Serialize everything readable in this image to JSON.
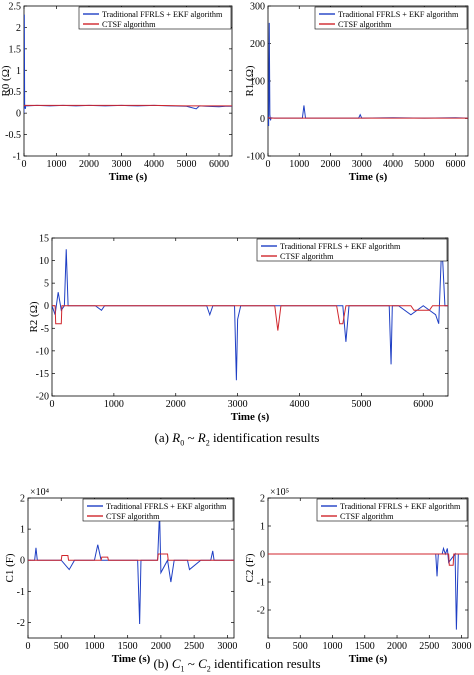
{
  "captions": {
    "a": {
      "label": "(a)",
      "sym1": "R",
      "sub1": "0",
      "sep": "~",
      "sym2": "R",
      "sub2": "2",
      "text": "identification results"
    },
    "b": {
      "label": "(b)",
      "sym1": "C",
      "sub1": "1",
      "sep": "~",
      "sym2": "C",
      "sub2": "2",
      "text": "identification results"
    }
  },
  "colors": {
    "traditional": "#1f3fc4",
    "ctsf": "#d0262c",
    "axis": "#000000",
    "grid": "#cfcfcf"
  },
  "chart_data": [
    {
      "id": "R0",
      "type": "line",
      "xlabel": "Time (s)",
      "ylabel": "R0 (Ω)",
      "xlim": [
        0,
        6400
      ],
      "ylim": [
        -1,
        2.5
      ],
      "xticks": [
        0,
        1000,
        2000,
        3000,
        4000,
        5000,
        6000
      ],
      "yticks": [
        -1,
        -0.5,
        0,
        0.5,
        1,
        1.5,
        2,
        2.5
      ],
      "ytick_labels": [
        "-1",
        "-0.5",
        "0",
        "0.5",
        "1",
        "1.5",
        "2",
        "2.5"
      ],
      "exponent": "",
      "legend": {
        "position": "top-right",
        "entries": [
          "Traditional FFRLS + EKF algorithm",
          "CTSF algorithm"
        ]
      },
      "series": [
        {
          "name": "Traditional FFRLS + EKF algorithm",
          "color": "#1f3fc4",
          "x": [
            0,
            10,
            20,
            40,
            60,
            100,
            400,
            800,
            1200,
            1600,
            2000,
            2500,
            3000,
            3500,
            4000,
            4500,
            5000,
            5300,
            5400,
            5600,
            6000,
            6200,
            6400
          ],
          "y": [
            0,
            2.3,
            0.15,
            0.1,
            0.18,
            0.17,
            0.18,
            0.17,
            0.18,
            0.17,
            0.18,
            0.17,
            0.18,
            0.17,
            0.18,
            0.17,
            0.16,
            0.1,
            0.17,
            0.16,
            0.15,
            0.16,
            0.16
          ]
        },
        {
          "name": "CTSF algorithm",
          "color": "#d0262c",
          "x": [
            0,
            30,
            100,
            1000,
            2000,
            3000,
            4000,
            5000,
            6000,
            6400
          ],
          "y": [
            0.17,
            0.18,
            0.18,
            0.18,
            0.18,
            0.18,
            0.18,
            0.17,
            0.17,
            0.17
          ]
        }
      ]
    },
    {
      "id": "R1",
      "type": "line",
      "xlabel": "Time (s)",
      "ylabel": "R1 (Ω)",
      "xlim": [
        0,
        6400
      ],
      "ylim": [
        -100,
        300
      ],
      "xticks": [
        0,
        1000,
        2000,
        3000,
        4000,
        5000,
        6000
      ],
      "yticks": [
        -100,
        0,
        100,
        200,
        300
      ],
      "ytick_labels": [
        "-100",
        "0",
        "100",
        "200",
        "300"
      ],
      "exponent": "",
      "legend": {
        "position": "top-right",
        "entries": [
          "Traditional FFRLS + EKF algorithm",
          "CTSF algorithm"
        ]
      },
      "series": [
        {
          "name": "Traditional FFRLS + EKF algorithm",
          "color": "#1f3fc4",
          "x": [
            0,
            20,
            40,
            60,
            80,
            100,
            200,
            1100,
            1150,
            1200,
            1250,
            2000,
            2900,
            2950,
            3000,
            4000,
            5000,
            6000,
            6400
          ],
          "y": [
            0,
            -20,
            255,
            10,
            -5,
            2,
            1,
            1,
            35,
            1,
            1,
            1,
            1,
            10,
            1,
            2,
            1,
            2,
            1
          ]
        },
        {
          "name": "CTSF algorithm",
          "color": "#d0262c",
          "x": [
            0,
            100,
            1000,
            2000,
            3000,
            4000,
            5000,
            6000,
            6400
          ],
          "y": [
            2,
            1,
            1,
            1,
            1,
            1,
            1,
            1,
            1
          ]
        }
      ]
    },
    {
      "id": "R2",
      "type": "line",
      "xlabel": "Time (s)",
      "ylabel": "R2 (Ω)",
      "xlim": [
        0,
        6400
      ],
      "ylim": [
        -20,
        15
      ],
      "xticks": [
        0,
        1000,
        2000,
        3000,
        4000,
        5000,
        6000
      ],
      "yticks": [
        -20,
        -15,
        -10,
        -5,
        0,
        5,
        10,
        15
      ],
      "ytick_labels": [
        "-20",
        "-15",
        "-10",
        "-5",
        "0",
        "5",
        "10",
        "15"
      ],
      "exponent": "",
      "legend": {
        "position": "top-right",
        "entries": [
          "Traditional FFRLS + EKF algorithm",
          "CTSF algorithm"
        ]
      },
      "series": [
        {
          "name": "Traditional FFRLS + EKF algorithm",
          "color": "#1f3fc4",
          "x": [
            0,
            50,
            100,
            150,
            200,
            230,
            260,
            300,
            700,
            800,
            850,
            1500,
            2500,
            2550,
            2600,
            2950,
            2980,
            3000,
            3050,
            3700,
            4300,
            4700,
            4750,
            4800,
            5200,
            5450,
            5480,
            5500,
            5600,
            5800,
            6000,
            6100,
            6200,
            6250,
            6300,
            6350,
            6400
          ],
          "y": [
            0,
            -2,
            3,
            -1,
            0,
            12.5,
            0,
            0,
            0,
            -1,
            0,
            0,
            0,
            -2,
            0,
            0,
            -16.5,
            -3,
            0,
            0,
            0,
            0,
            -8,
            0,
            0,
            0,
            -13,
            0,
            0,
            -2,
            0,
            -1,
            -2,
            -4,
            14,
            0,
            0
          ]
        },
        {
          "name": "CTSF algorithm",
          "color": "#d0262c",
          "x": [
            0,
            50,
            60,
            150,
            160,
            1000,
            2000,
            2900,
            3600,
            3650,
            3700,
            4600,
            4650,
            4700,
            4750,
            5800,
            5850,
            6100,
            6150,
            6400
          ],
          "y": [
            0,
            0,
            -4,
            -4,
            0,
            0,
            0,
            0,
            0,
            -5.5,
            0,
            0,
            -4,
            -4,
            0,
            0,
            -1,
            -1,
            0,
            0
          ]
        }
      ]
    },
    {
      "id": "C1",
      "type": "line",
      "xlabel": "Time (s)",
      "ylabel": "C1 (F)",
      "xlim": [
        0,
        3100
      ],
      "ylim": [
        -2.5,
        2
      ],
      "xticks": [
        0,
        500,
        1000,
        1500,
        2000,
        2500,
        3000
      ],
      "yticks": [
        -2,
        -1,
        0,
        1,
        2
      ],
      "ytick_labels": [
        "-2",
        "-1",
        "0",
        "1",
        "2"
      ],
      "exponent": "×10⁴",
      "legend": {
        "position": "top-right",
        "entries": [
          "Traditional FFRLS + EKF algorithm",
          "CTSF algorithm"
        ]
      },
      "series": [
        {
          "name": "Traditional FFRLS + EKF algorithm",
          "color": "#1f3fc4",
          "x": [
            0,
            100,
            120,
            140,
            300,
            500,
            620,
            700,
            1000,
            1050,
            1100,
            1300,
            1650,
            1680,
            1700,
            1950,
            1980,
            2000,
            2100,
            2150,
            2200,
            2400,
            2430,
            2600,
            2750,
            2780,
            2800,
            3100
          ],
          "y": [
            0,
            0,
            0.4,
            0,
            0,
            0,
            -0.3,
            0,
            0,
            0.5,
            0,
            0,
            0,
            -2.05,
            0,
            0,
            1.55,
            -0.4,
            0,
            -0.7,
            0,
            0,
            -0.3,
            0,
            0,
            0.3,
            0,
            0
          ]
        },
        {
          "name": "CTSF algorithm",
          "color": "#d0262c",
          "x": [
            0,
            500,
            510,
            600,
            610,
            1100,
            1110,
            1200,
            1210,
            1950,
            1960,
            2100,
            2110,
            3100
          ],
          "y": [
            0,
            0,
            0.15,
            0.15,
            0,
            0,
            0.1,
            0.1,
            0,
            0,
            0.2,
            0.2,
            0,
            0
          ]
        }
      ]
    },
    {
      "id": "C2",
      "type": "line",
      "xlabel": "Time (s)",
      "ylabel": "C2 (F)",
      "xlim": [
        0,
        3100
      ],
      "ylim": [
        -3,
        2
      ],
      "xticks": [
        0,
        500,
        1000,
        1500,
        2000,
        2500,
        3000
      ],
      "yticks": [
        -2,
        -1,
        0,
        1,
        2
      ],
      "ytick_labels": [
        "-2",
        "-1",
        "0",
        "1",
        "2"
      ],
      "exponent": "×10⁵",
      "legend": {
        "position": "top-right",
        "entries": [
          "Traditional FFRLS + EKF algorithm",
          "CTSF algorithm"
        ]
      },
      "series": [
        {
          "name": "Traditional FFRLS + EKF algorithm",
          "color": "#1f3fc4",
          "x": [
            0,
            1000,
            2000,
            2600,
            2620,
            2640,
            2700,
            2720,
            2750,
            2780,
            2800,
            2900,
            2920,
            2950,
            3100
          ],
          "y": [
            0,
            0,
            0,
            0,
            -0.8,
            0,
            0,
            0.2,
            0,
            0.2,
            -0.3,
            0,
            -2.7,
            0,
            0
          ]
        },
        {
          "name": "CTSF algorithm",
          "color": "#d0262c",
          "x": [
            0,
            2800,
            2810,
            2870,
            2880,
            3100
          ],
          "y": [
            0,
            0,
            -0.4,
            -0.4,
            0,
            0
          ]
        }
      ]
    }
  ]
}
